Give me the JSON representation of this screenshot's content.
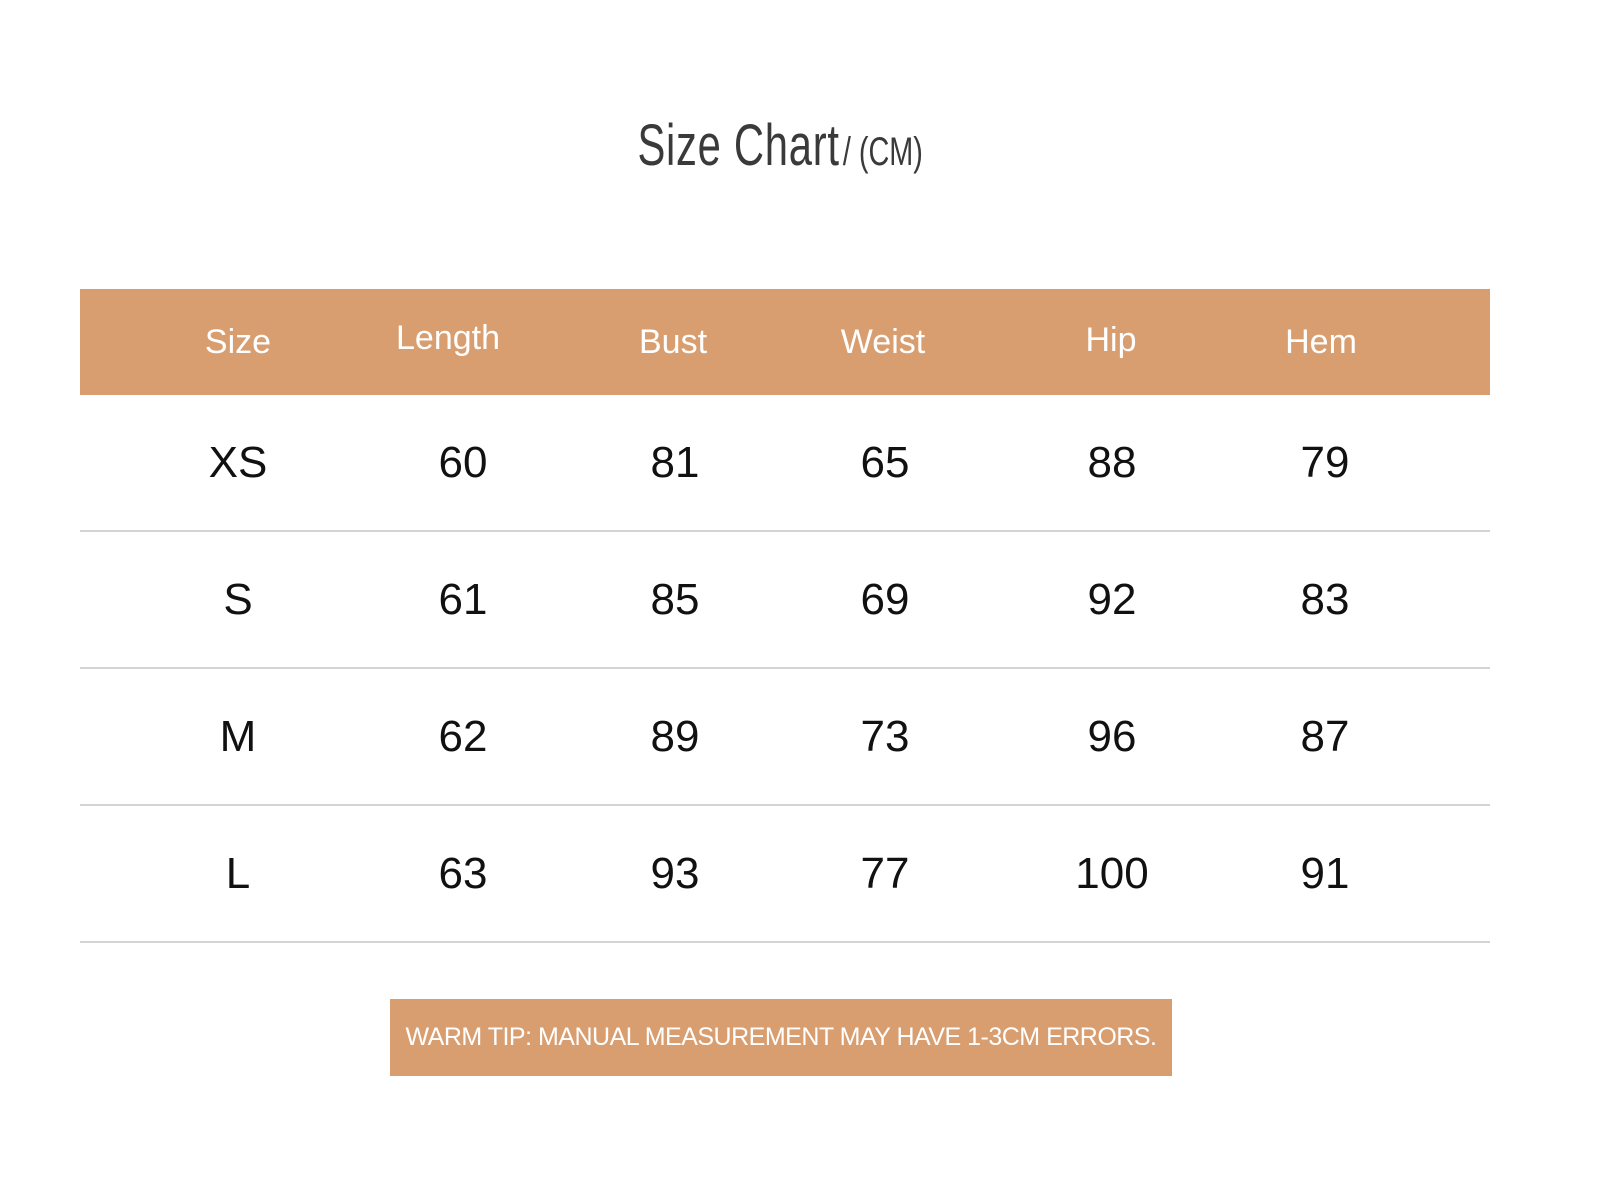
{
  "title": {
    "main": "Size Chart",
    "unit": "/ (CM)"
  },
  "colors": {
    "accent": "#d99e70",
    "text": "#111111",
    "title": "#3a3a3a",
    "divider": "#d4d4d4"
  },
  "table": {
    "headers": [
      "Size",
      "Length",
      "Bust",
      "Weist",
      "Hip",
      "Hem"
    ],
    "rows": [
      [
        "XS",
        "60",
        "81",
        "65",
        "88",
        "79"
      ],
      [
        "S",
        "61",
        "85",
        "69",
        "92",
        "83"
      ],
      [
        "M",
        "62",
        "89",
        "73",
        "96",
        "87"
      ],
      [
        "L",
        "63",
        "93",
        "77",
        "100",
        "91"
      ]
    ]
  },
  "tip": "WARM TIP: MANUAL MEASUREMENT MAY HAVE 1-3CM ERRORS."
}
